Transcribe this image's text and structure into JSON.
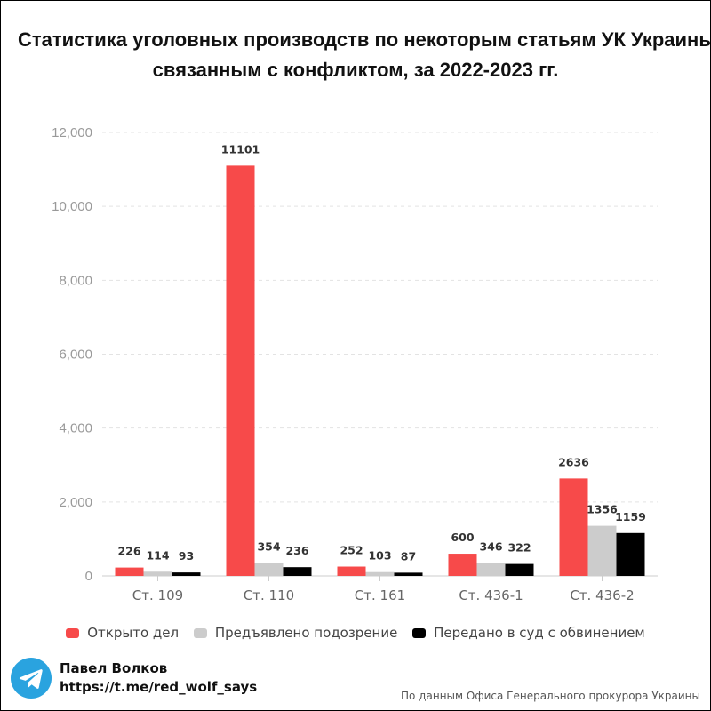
{
  "title": {
    "line1": "Статистика уголовных производств по некоторым статьям УК Украины,",
    "line2": "связанным с конфликтом, за 2022-2023 гг."
  },
  "chart_data": {
    "type": "bar",
    "categories": [
      "Ст. 109",
      "Ст. 110",
      "Ст. 161",
      "Ст. 436-1",
      "Ст. 436-2"
    ],
    "series": [
      {
        "name": "Открыто дел",
        "color": "#f74a4a",
        "values": [
          226,
          11101,
          252,
          600,
          2636
        ]
      },
      {
        "name": "Предъявлено подозрение",
        "color": "#cccccc",
        "values": [
          114,
          354,
          103,
          346,
          1356
        ]
      },
      {
        "name": "Передано в суд с обвинением",
        "color": "#000000",
        "values": [
          93,
          236,
          87,
          322,
          1159
        ]
      }
    ],
    "yticks": [
      "0",
      "2,000",
      "4,000",
      "6,000",
      "8,000",
      "10,000",
      "12,000"
    ],
    "ylim": [
      0,
      12000
    ],
    "grid": true,
    "legend_position": "bottom"
  },
  "author": {
    "name": "Павел Волков",
    "link": "https://t.me/red_wolf_says",
    "icon": "telegram-icon"
  },
  "source": "По данным Офиса Генерального прокурора Украины"
}
